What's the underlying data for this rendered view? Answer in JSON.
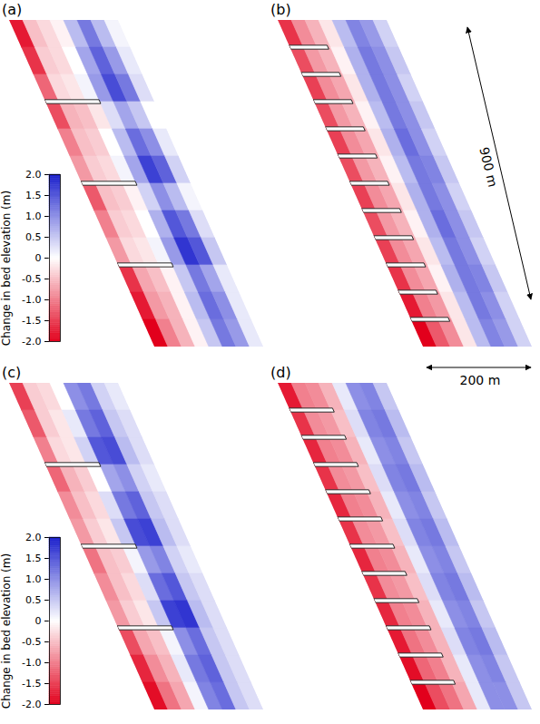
{
  "chart_data": [
    {
      "type": "heatmap",
      "title": "(a)",
      "tick_labels": false,
      "xlim": [
        0,
        200
      ],
      "ylim": [
        0,
        900
      ],
      "x": [
        12.5,
        37.5,
        62.5,
        87.5,
        112.5,
        137.5,
        162.5,
        187.5
      ],
      "y": [
        37.5,
        112.5,
        187.5,
        262.5,
        337.5,
        412.5,
        487.5,
        562.5,
        637.5,
        712.5,
        787.5,
        862.5
      ],
      "values": [
        [
          -1.8,
          -0.5,
          -0.3,
          -0.1,
          0.6,
          1.2,
          0.6,
          0.1
        ],
        [
          -1.6,
          -0.4,
          -0.3,
          0.0,
          0.8,
          1.4,
          0.9,
          0.2
        ],
        [
          -1.2,
          -0.3,
          -0.2,
          0.1,
          0.9,
          1.6,
          1.2,
          0.3
        ],
        [
          -1.4,
          -0.6,
          -0.5,
          -0.2,
          0.3,
          0.8,
          0.5,
          0.0
        ],
        [
          -1.0,
          -0.5,
          -0.4,
          0.0,
          0.6,
          1.3,
          1.0,
          0.2
        ],
        [
          -0.8,
          -0.4,
          -0.3,
          0.1,
          0.8,
          1.7,
          1.4,
          0.4
        ],
        [
          -1.3,
          -0.5,
          -0.4,
          -0.1,
          0.4,
          1.0,
          0.6,
          0.1
        ],
        [
          -1.0,
          -0.4,
          -0.3,
          0.0,
          0.7,
          1.5,
          1.2,
          0.3
        ],
        [
          -0.8,
          -0.3,
          -0.2,
          0.1,
          0.9,
          1.8,
          1.5,
          0.5
        ],
        [
          -1.6,
          -0.7,
          -0.5,
          -0.1,
          0.5,
          1.2,
          0.8,
          0.2
        ],
        [
          -1.8,
          -0.8,
          -0.6,
          -0.1,
          0.6,
          1.3,
          1.0,
          0.2
        ],
        [
          -2.0,
          -1.0,
          -0.6,
          -0.1,
          0.5,
          1.2,
          0.9,
          0.2
        ]
      ],
      "groynes": [
        225,
        450,
        675
      ],
      "groyne_length": 100,
      "colorbar": {
        "label": "Change in bed elevation (m)",
        "range": [
          -2,
          2
        ],
        "ticks": [
          {
            "value": 2,
            "label": "2.0"
          },
          1.5,
          {
            "value": 1,
            "label": "1.0"
          },
          0.5,
          0,
          -0.5,
          {
            "value": -1,
            "label": "-1.0"
          },
          -1.5,
          {
            "value": -2,
            "label": "-2.0"
          }
        ]
      }
    },
    {
      "type": "heatmap",
      "title": "(b)",
      "tick_labels": false,
      "xlim": [
        0,
        200
      ],
      "ylim": [
        0,
        900
      ],
      "x": [
        12.5,
        37.5,
        62.5,
        87.5,
        112.5,
        137.5,
        162.5,
        187.5
      ],
      "y": [
        37.5,
        112.5,
        187.5,
        262.5,
        337.5,
        412.5,
        487.5,
        562.5,
        637.5,
        712.5,
        787.5,
        862.5
      ],
      "values": [
        [
          -1.6,
          -0.9,
          -0.6,
          -0.2,
          0.6,
          1.1,
          0.9,
          0.4
        ],
        [
          -1.4,
          -0.8,
          -0.6,
          -0.1,
          0.7,
          1.2,
          1.0,
          0.5
        ],
        [
          -1.5,
          -0.9,
          -0.7,
          -0.2,
          0.7,
          1.2,
          1.0,
          0.4
        ],
        [
          -1.4,
          -0.8,
          -0.6,
          -0.1,
          0.6,
          1.2,
          1.0,
          0.5
        ],
        [
          -1.5,
          -0.9,
          -0.7,
          -0.2,
          0.7,
          1.3,
          1.0,
          0.4
        ],
        [
          -1.4,
          -0.8,
          -0.6,
          -0.1,
          0.6,
          1.2,
          1.1,
          0.5
        ],
        [
          -1.5,
          -0.9,
          -0.7,
          -0.2,
          0.7,
          1.2,
          1.0,
          0.4
        ],
        [
          -1.4,
          -0.8,
          -0.6,
          -0.1,
          0.7,
          1.3,
          1.0,
          0.5
        ],
        [
          -1.5,
          -0.9,
          -0.7,
          -0.2,
          0.6,
          1.2,
          1.0,
          0.4
        ],
        [
          -1.6,
          -0.9,
          -0.7,
          -0.1,
          0.7,
          1.2,
          1.1,
          0.5
        ],
        [
          -1.8,
          -1.0,
          -0.8,
          -0.2,
          0.6,
          1.2,
          1.0,
          0.4
        ],
        [
          -2.0,
          -1.3,
          -0.9,
          -0.2,
          0.6,
          1.1,
          0.9,
          0.4
        ]
      ],
      "groynes": [
        75,
        150,
        225,
        300,
        375,
        450,
        525,
        600,
        675,
        750,
        825
      ],
      "groyne_length": 70,
      "annotations": [
        "900 m",
        "200 m"
      ]
    },
    {
      "type": "heatmap",
      "title": "(c)",
      "tick_labels": false,
      "xlim": [
        0,
        200
      ],
      "ylim": [
        0,
        900
      ],
      "x": [
        12.5,
        37.5,
        62.5,
        87.5,
        112.5,
        137.5,
        162.5,
        187.5
      ],
      "y": [
        37.5,
        112.5,
        187.5,
        262.5,
        337.5,
        412.5,
        487.5,
        562.5,
        637.5,
        712.5,
        787.5,
        862.5
      ],
      "values": [
        [
          -1.5,
          -0.4,
          -0.3,
          0.0,
          1.0,
          1.2,
          0.4,
          0.2
        ],
        [
          -1.3,
          -0.4,
          -0.2,
          0.2,
          1.2,
          1.4,
          0.5,
          0.3
        ],
        [
          -1.0,
          -0.3,
          -0.2,
          0.4,
          1.5,
          1.6,
          0.6,
          0.3
        ],
        [
          -1.2,
          -0.6,
          -0.4,
          0.0,
          0.8,
          1.0,
          0.4,
          0.2
        ],
        [
          -0.9,
          -0.5,
          -0.3,
          0.3,
          1.2,
          1.4,
          0.5,
          0.3
        ],
        [
          -0.8,
          -0.4,
          -0.2,
          0.5,
          1.6,
          1.7,
          0.6,
          0.3
        ],
        [
          -1.1,
          -0.5,
          -0.4,
          0.1,
          0.9,
          1.1,
          0.4,
          0.2
        ],
        [
          -0.9,
          -0.5,
          -0.3,
          0.3,
          1.3,
          1.5,
          0.5,
          0.3
        ],
        [
          -0.8,
          -0.4,
          -0.2,
          0.5,
          1.7,
          1.8,
          0.6,
          0.3
        ],
        [
          -1.4,
          -0.7,
          -0.5,
          0.1,
          1.0,
          1.3,
          0.5,
          0.3
        ],
        [
          -1.7,
          -0.9,
          -0.6,
          0.2,
          1.2,
          1.4,
          0.5,
          0.3
        ],
        [
          -1.9,
          -1.1,
          -0.7,
          0.1,
          1.1,
          1.3,
          0.5,
          0.3
        ]
      ],
      "groynes": [
        225,
        450,
        675
      ],
      "groyne_length": 100,
      "colorbar": {
        "label": "Change in bed elevation (m)",
        "range": [
          -2,
          2
        ],
        "ticks": [
          {
            "value": 2,
            "label": "2.0"
          },
          1.5,
          {
            "value": 1,
            "label": "1.0"
          },
          0.5,
          0,
          -0.5,
          {
            "value": -1,
            "label": "-1.0"
          },
          -1.5,
          {
            "value": -2,
            "label": "-2.0"
          }
        ]
      }
    },
    {
      "type": "heatmap",
      "title": "(d)",
      "tick_labels": false,
      "xlim": [
        0,
        200
      ],
      "ylim": [
        0,
        900
      ],
      "x": [
        12.5,
        37.5,
        62.5,
        87.5,
        112.5,
        137.5,
        162.5,
        187.5
      ],
      "y": [
        37.5,
        112.5,
        187.5,
        262.5,
        337.5,
        412.5,
        487.5,
        562.5,
        637.5,
        712.5,
        787.5,
        862.5
      ],
      "values": [
        [
          -1.8,
          -1.0,
          -0.9,
          -0.6,
          0.2,
          1.0,
          1.1,
          0.5
        ],
        [
          -1.6,
          -0.9,
          -0.8,
          -0.5,
          0.3,
          1.1,
          1.2,
          0.6
        ],
        [
          -1.7,
          -1.0,
          -0.9,
          -0.6,
          0.2,
          1.0,
          1.1,
          0.5
        ],
        [
          -1.6,
          -0.9,
          -0.8,
          -0.5,
          0.3,
          1.1,
          1.2,
          0.6
        ],
        [
          -1.7,
          -1.0,
          -0.9,
          -0.6,
          0.2,
          1.0,
          1.1,
          0.5
        ],
        [
          -1.6,
          -0.9,
          -0.8,
          -0.5,
          0.3,
          1.1,
          1.2,
          0.6
        ],
        [
          -1.7,
          -1.0,
          -0.9,
          -0.6,
          0.2,
          1.0,
          1.1,
          0.5
        ],
        [
          -1.6,
          -0.9,
          -0.8,
          -0.5,
          0.3,
          1.1,
          1.2,
          0.6
        ],
        [
          -1.7,
          -1.0,
          -0.9,
          -0.6,
          0.2,
          1.0,
          1.1,
          0.5
        ],
        [
          -1.8,
          -1.1,
          -0.9,
          -0.6,
          0.3,
          1.1,
          1.2,
          0.6
        ],
        [
          -1.9,
          -1.2,
          -1.0,
          -0.6,
          0.2,
          1.0,
          1.1,
          0.5
        ],
        [
          -2.0,
          -1.4,
          -1.1,
          -0.7,
          0.2,
          1.0,
          1.0,
          0.5
        ]
      ],
      "groynes": [
        75,
        150,
        225,
        300,
        375,
        450,
        525,
        600,
        675,
        750,
        825
      ],
      "groyne_length": 80
    }
  ]
}
